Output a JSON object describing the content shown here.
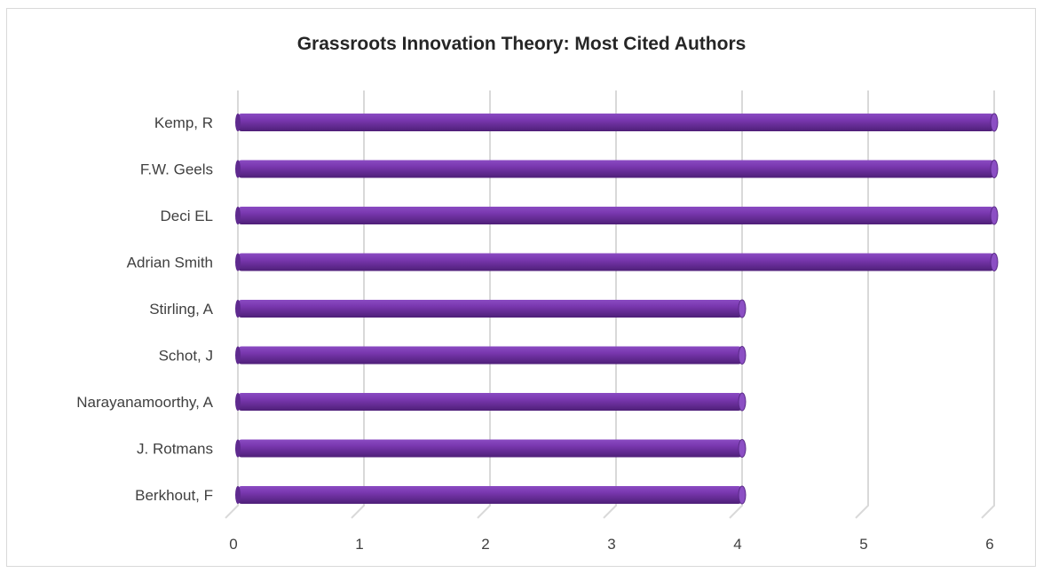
{
  "chart_data": {
    "type": "bar",
    "orientation": "horizontal",
    "title": "Grassroots Innovation Theory: Most Cited Authors",
    "categories": [
      "Kemp, R",
      "F.W. Geels",
      "Deci EL",
      "Adrian Smith",
      "Stirling, A",
      "Schot, J",
      "Narayanamoorthy, A",
      "J. Rotmans",
      "Berkhout, F"
    ],
    "values": [
      6,
      6,
      6,
      6,
      4,
      4,
      4,
      4,
      4
    ],
    "xlim": [
      0,
      6
    ],
    "xticks": [
      "0",
      "1",
      "2",
      "3",
      "4",
      "5",
      "6"
    ],
    "grid": true,
    "legend": "none",
    "bar_color": "#7030a0",
    "grid_color": "#d9d9d9",
    "text_color": "#404040"
  }
}
